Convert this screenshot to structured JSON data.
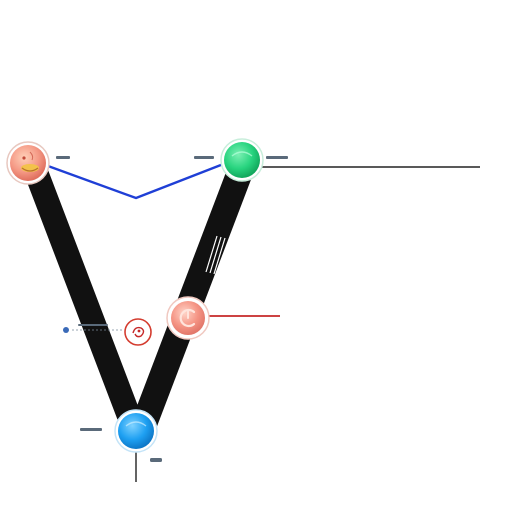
{
  "diagram": {
    "labels": {
      "top_left": "",
      "top_right": "",
      "mid_left": "",
      "bottom_left": "",
      "bottom_right": ""
    },
    "colors": {
      "arm": "#111111",
      "blue_link": "#1f3fd6",
      "black_line": "#222222",
      "red_line": "#c62828",
      "node_salmon": "#f38b7a",
      "node_green": "#27d07d",
      "node_blue": "#1ea0f2",
      "node_red_outline": "#d43c2f",
      "label_color": "#4a5a6a"
    },
    "nodes": [
      {
        "id": "top-left-node",
        "icon": "face-icon"
      },
      {
        "id": "top-right-node",
        "icon": "green-orb-icon"
      },
      {
        "id": "middle-node",
        "icon": "power-icon"
      },
      {
        "id": "small-red-node",
        "icon": "small-swirl-icon"
      },
      {
        "id": "bottom-node",
        "icon": "blue-orb-icon"
      }
    ]
  }
}
